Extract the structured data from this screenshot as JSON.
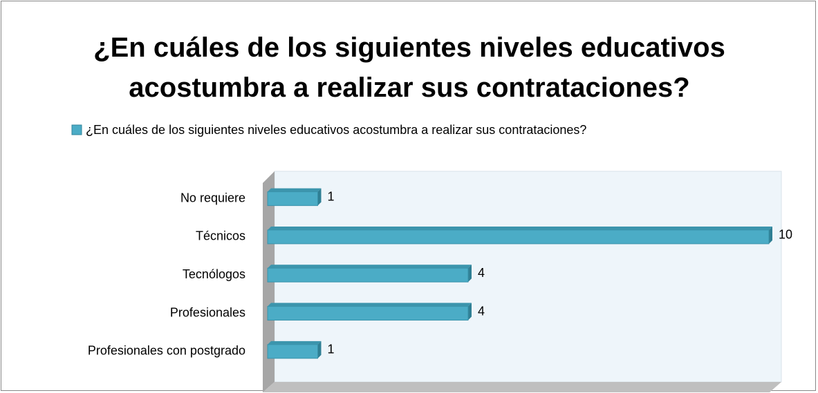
{
  "chart_data": {
    "type": "bar",
    "orientation": "horizontal",
    "title": "¿En cuáles de los siguientes niveles educativos acostumbra a realizar sus contrataciones?",
    "categories": [
      "No requiere",
      "Técnicos",
      "Tecnólogos",
      "Profesionales",
      "Profesionales con postgrado"
    ],
    "series": [
      {
        "name": "¿En cuáles de los siguientes niveles educativos acostumbra a realizar sus contrataciones?",
        "color": "#4bacc6",
        "values": [
          1,
          10,
          4,
          4,
          1
        ]
      }
    ],
    "legend": "top"
  }
}
